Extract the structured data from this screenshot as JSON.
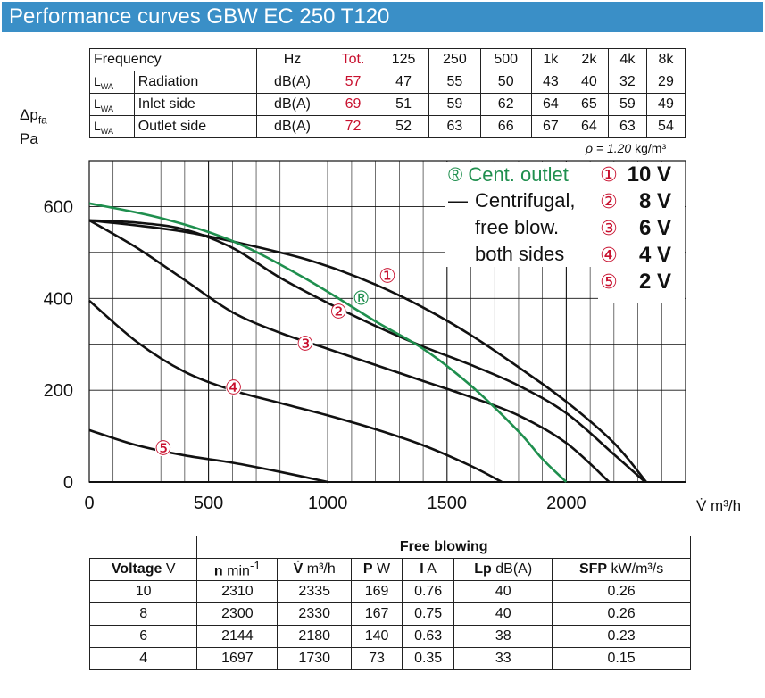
{
  "header": {
    "title": "Performance curves GBW EC 250 T120"
  },
  "sound_table": {
    "col_freq": "Frequency",
    "col_unit": "Hz",
    "col_tot": "Tot.",
    "bands": [
      "125",
      "250",
      "500",
      "1k",
      "2k",
      "4k",
      "8k"
    ],
    "lwa_label": "L",
    "lwa_sub": "WA",
    "rows": [
      {
        "label": "Radiation",
        "unit": "dB(A)",
        "tot": "57",
        "values": [
          "47",
          "55",
          "50",
          "43",
          "40",
          "32",
          "29"
        ]
      },
      {
        "label": "Inlet side",
        "unit": "dB(A)",
        "tot": "69",
        "values": [
          "51",
          "59",
          "62",
          "64",
          "65",
          "59",
          "49"
        ]
      },
      {
        "label": "Outlet side",
        "unit": "dB(A)",
        "tot": "72",
        "values": [
          "52",
          "63",
          "66",
          "67",
          "64",
          "63",
          "54"
        ]
      }
    ]
  },
  "y_axis_label": {
    "main": "Δp",
    "sub": "fa",
    "unit": "Pa"
  },
  "rho_label": {
    "sym": "ρ = 1.20",
    "unit": "kg/m³"
  },
  "chart_data": {
    "type": "line",
    "xlabel": "V̇  m³/h",
    "ylabel": "Δpfa Pa",
    "xlim": [
      0,
      2500
    ],
    "ylim": [
      0,
      700
    ],
    "x_ticks": [
      "0",
      "500",
      "1000",
      "1500",
      "2000"
    ],
    "y_ticks": [
      "0",
      "200",
      "400",
      "600"
    ],
    "grid": true,
    "legend": {
      "outlet": "® Cent. outlet",
      "free_dash": "—",
      "free_lines": [
        "Centrifugal,",
        "free blow.",
        "both sides"
      ],
      "voltages": [
        {
          "sym": "①",
          "label": "10 V"
        },
        {
          "sym": "②",
          "label": "8 V"
        },
        {
          "sym": "③",
          "label": "6 V"
        },
        {
          "sym": "④",
          "label": "4 V"
        },
        {
          "sym": "⑤",
          "label": "2 V"
        }
      ]
    },
    "series": [
      {
        "marker": "①",
        "color": "#111111",
        "points": [
          [
            0,
            570
          ],
          [
            400,
            545
          ],
          [
            800,
            500
          ],
          [
            1000,
            470
          ],
          [
            1200,
            430
          ],
          [
            1400,
            380
          ],
          [
            1600,
            320
          ],
          [
            1800,
            250
          ],
          [
            2000,
            175
          ],
          [
            2200,
            85
          ],
          [
            2335,
            0
          ]
        ],
        "label_at": [
          1250,
          448
        ]
      },
      {
        "marker": "②",
        "color": "#111111",
        "points": [
          [
            0,
            570
          ],
          [
            200,
            565
          ],
          [
            400,
            550
          ],
          [
            600,
            510
          ],
          [
            800,
            445
          ],
          [
            1000,
            390
          ],
          [
            1200,
            340
          ],
          [
            1400,
            295
          ],
          [
            1600,
            255
          ],
          [
            1800,
            210
          ],
          [
            2000,
            150
          ],
          [
            2200,
            60
          ],
          [
            2330,
            0
          ]
        ],
        "label_at": [
          1045,
          370
        ]
      },
      {
        "marker": "③",
        "color": "#111111",
        "points": [
          [
            0,
            570
          ],
          [
            200,
            510
          ],
          [
            400,
            440
          ],
          [
            600,
            370
          ],
          [
            800,
            325
          ],
          [
            1000,
            290
          ],
          [
            1200,
            255
          ],
          [
            1400,
            220
          ],
          [
            1600,
            185
          ],
          [
            1800,
            145
          ],
          [
            2000,
            85
          ],
          [
            2180,
            0
          ]
        ],
        "label_at": [
          905,
          300
        ]
      },
      {
        "marker": "④",
        "color": "#111111",
        "points": [
          [
            0,
            395
          ],
          [
            200,
            305
          ],
          [
            400,
            240
          ],
          [
            600,
            200
          ],
          [
            800,
            172
          ],
          [
            1000,
            145
          ],
          [
            1200,
            115
          ],
          [
            1400,
            80
          ],
          [
            1600,
            35
          ],
          [
            1730,
            0
          ]
        ],
        "label_at": [
          605,
          205
        ]
      },
      {
        "marker": "⑤",
        "color": "#111111",
        "points": [
          [
            0,
            113
          ],
          [
            200,
            80
          ],
          [
            400,
            58
          ],
          [
            600,
            42
          ],
          [
            800,
            22
          ],
          [
            1000,
            0
          ]
        ],
        "label_at": [
          310,
          73
        ]
      },
      {
        "marker": "®",
        "color": "#1f8f4e",
        "points": [
          [
            0,
            607
          ],
          [
            300,
            575
          ],
          [
            600,
            525
          ],
          [
            900,
            445
          ],
          [
            1200,
            350
          ],
          [
            1400,
            290
          ],
          [
            1600,
            210
          ],
          [
            1800,
            110
          ],
          [
            1900,
            50
          ],
          [
            2000,
            0
          ]
        ],
        "label_at": [
          1140,
          400
        ]
      }
    ]
  },
  "perf_table": {
    "group_title": "Free blowing",
    "col_voltage": "Voltage",
    "col_voltage_unit": " V",
    "cols": [
      {
        "sym": "n",
        "unit": " min",
        "sup": "-1"
      },
      {
        "sym": "V̇",
        "unit": " m³/h",
        "sup": ""
      },
      {
        "sym": "P",
        "unit": " W",
        "sup": ""
      },
      {
        "sym": "I",
        "unit": " A",
        "sup": ""
      },
      {
        "sym": "Lp",
        "unit": " dB(A)",
        "sup": ""
      },
      {
        "sym": "SFP",
        "unit": " kW/m³/s",
        "sup": ""
      }
    ],
    "rows": [
      {
        "voltage": "10",
        "values": [
          "2310",
          "2335",
          "169",
          "0.76",
          "40",
          "0.26"
        ]
      },
      {
        "voltage": "8",
        "values": [
          "2300",
          "2330",
          "167",
          "0.75",
          "40",
          "0.26"
        ]
      },
      {
        "voltage": "6",
        "values": [
          "2144",
          "2180",
          "140",
          "0.63",
          "38",
          "0.23"
        ]
      },
      {
        "voltage": "4",
        "values": [
          "1697",
          "1730",
          "73",
          "0.35",
          "33",
          "0.15"
        ]
      }
    ]
  }
}
